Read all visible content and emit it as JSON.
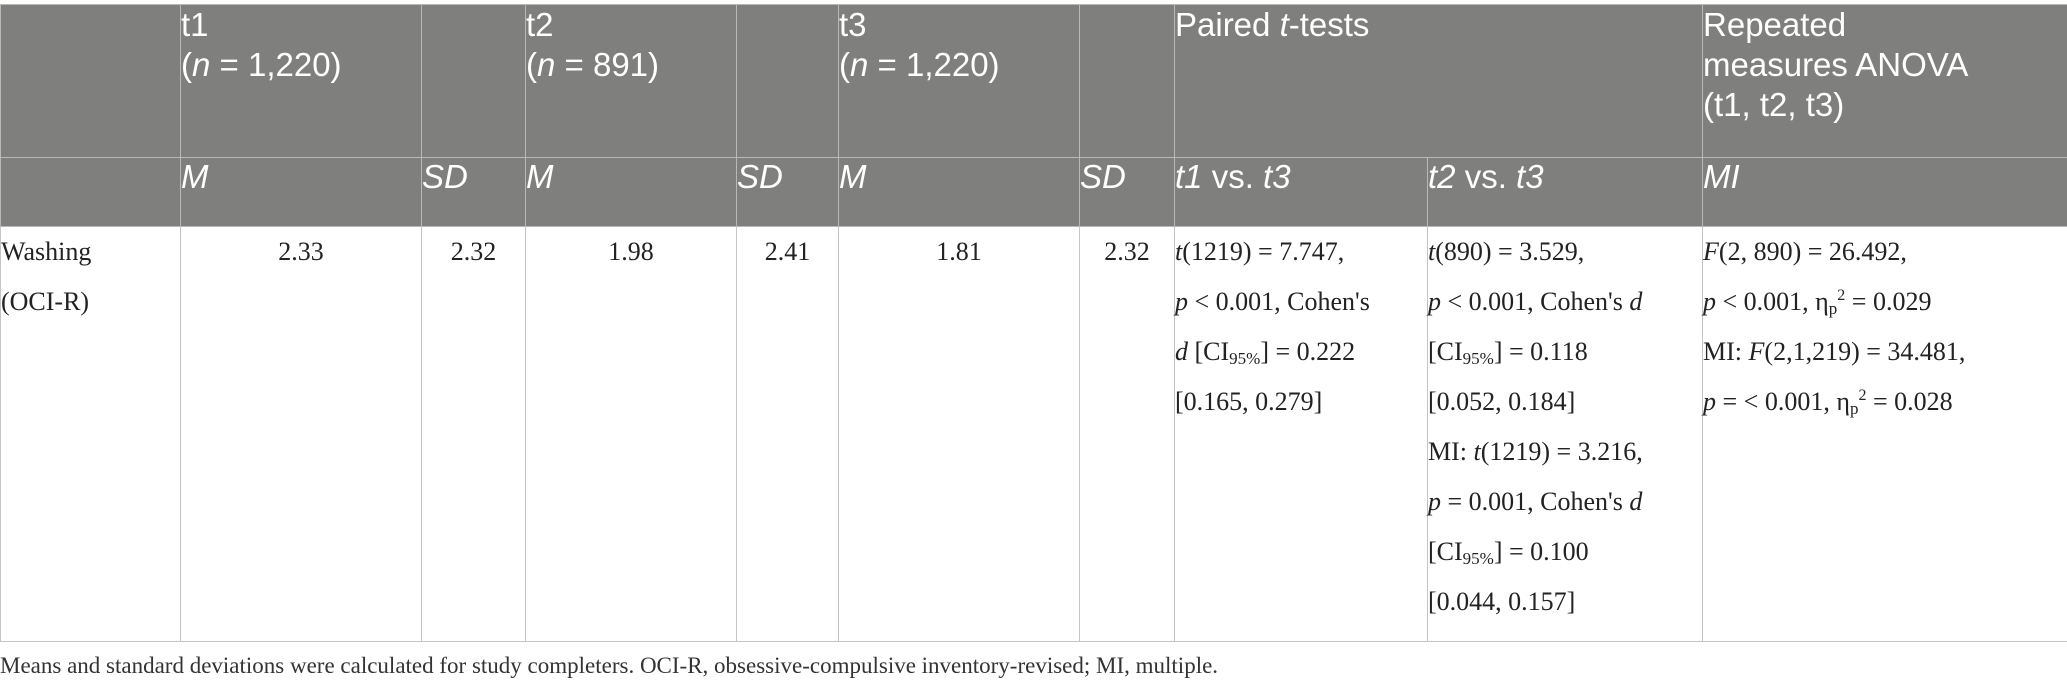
{
  "header": {
    "t1": {
      "label": "t1",
      "n_prefix": "(",
      "n_var": "n",
      "n_value": " = 1,220)"
    },
    "t2": {
      "label": "t2",
      "n_prefix": "(",
      "n_var": "n",
      "n_value": " = 891)"
    },
    "t3": {
      "label": "t3",
      "n_prefix": "(",
      "n_var": "n",
      "n_value": " = 1,220)"
    },
    "paired": {
      "pre": "Paired ",
      "var": "t",
      "post": "-tests"
    },
    "anova": {
      "line1": "Repeated",
      "line2": "measures ANOVA",
      "line3": "(t1, t2, t3)"
    }
  },
  "subheader": {
    "m": "M",
    "sd": "SD",
    "t1_label": "t1",
    "t2_label": "t2",
    "t3_label": "t3",
    "vs": " vs. ",
    "mi": "MI"
  },
  "row": {
    "label_line1": "Washing",
    "label_line2": "(OCI-R)",
    "t1_m": "2.33",
    "t1_sd": "2.32",
    "t2_m": "1.98",
    "t2_sd": "2.41",
    "t3_m": "1.81",
    "t3_sd": "2.32",
    "t1vst3": {
      "l1_var": "t",
      "l1_rest": "(1219) = 7.747,",
      "l2_var": "p",
      "l2_rest": " < 0.001, Cohen's",
      "l3_var": "d",
      "l3_ci": " [CI",
      "l3_sub": "95%",
      "l3_rest": "] = 0.222",
      "l4": "[0.165, 0.279]"
    },
    "t2vst3": {
      "l1_var": "t",
      "l1_rest": "(890) = 3.529,",
      "l2_var": "p",
      "l2_rest": " < 0.001, Cohen's ",
      "l2_var2": "d",
      "l3_ci": "[CI",
      "l3_sub": "95%",
      "l3_rest": "] = 0.118",
      "l4": "[0.052, 0.184]",
      "l5_pre": "MI: ",
      "l5_var": "t",
      "l5_rest": "(1219) = 3.216,",
      "l6_var": "p",
      "l6_rest": " = 0.001, Cohen's ",
      "l6_var2": "d",
      "l7_ci": "[CI",
      "l7_sub": "95%",
      "l7_rest": "] = 0.100",
      "l8": "[0.044, 0.157]"
    },
    "anova": {
      "l1_var": "F",
      "l1_rest": "(2, 890) = 26.492,",
      "l2_var": "p",
      "l2_mid": " < 0.001, η",
      "l2_sub": "p",
      "l2_sup": "2",
      "l2_rest": " = 0.029",
      "l3_pre": "MI: ",
      "l3_var": "F",
      "l3_rest": "(2,1,219) = 34.481,",
      "l4_var": "p",
      "l4_mid": " = < 0.001, η",
      "l4_sub": "p",
      "l4_sup": "2",
      "l4_rest": " = 0.028"
    }
  },
  "footnote": "Means and standard deviations were calculated for study completers. OCI-R, obsessive-compulsive inventory-revised; MI, multiple."
}
